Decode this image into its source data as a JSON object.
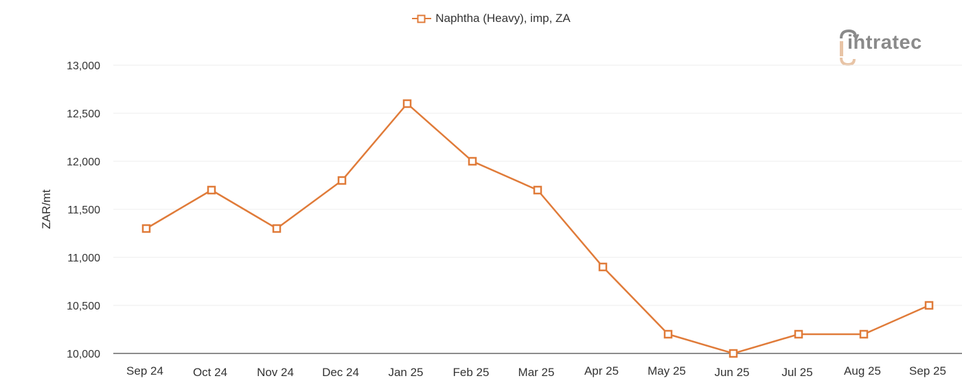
{
  "legend": {
    "series_label": "Naphtha (Heavy), imp, ZA",
    "marker": "hollow-square-line"
  },
  "logo": {
    "text": "intratec"
  },
  "colors": {
    "series": "#e07b39",
    "grid": "#eeeeee",
    "axis": "#666666",
    "text": "#333333",
    "logo_gray": "#8a8a8a",
    "logo_accent": "#e8c4a6"
  },
  "chart_data": {
    "type": "line",
    "title": "",
    "xlabel": "",
    "ylabel": "ZAR/mt",
    "ylim": [
      10000,
      13000
    ],
    "yticks": [
      10000,
      10500,
      11000,
      11500,
      12000,
      12500,
      13000
    ],
    "ytick_labels": [
      "10,000",
      "10,500",
      "11,000",
      "11,500",
      "12,000",
      "12,500",
      "13,000"
    ],
    "grid": true,
    "legend_position": "top-center",
    "categories": [
      "Sep 24",
      "Oct 24",
      "Nov 24",
      "Dec 24",
      "Jan 25",
      "Feb 25",
      "Mar 25",
      "Apr 25",
      "May 25",
      "Jun 25",
      "Jul 25",
      "Aug 25",
      "Sep 25"
    ],
    "series": [
      {
        "name": "Naphtha (Heavy), imp, ZA",
        "values": [
          11300,
          11700,
          11300,
          11800,
          12600,
          12000,
          11700,
          10900,
          10200,
          10000,
          10200,
          10200,
          10500
        ]
      }
    ]
  }
}
